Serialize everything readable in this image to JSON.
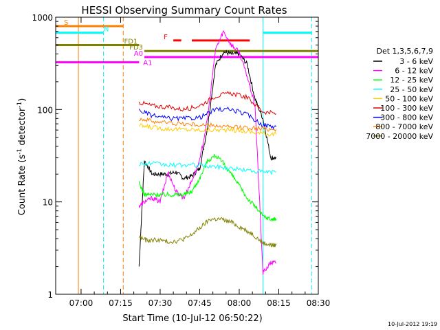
{
  "chart_data": {
    "type": "line",
    "title": "HESSI Observing Summary Count Rates",
    "xlabel": "Start Time (10-Jul-12 06:50:22)",
    "ylabel": "Count Rate (s⁻¹ detector⁻¹)",
    "ylabel_parts": [
      "Count Rate (s",
      "-1",
      " detector",
      "-1",
      ")"
    ],
    "y_scale": "log",
    "ylim": [
      1,
      1000
    ],
    "xlim": [
      "06:50:22",
      "08:30:00"
    ],
    "x_ticks": [
      "07:00",
      "07:15",
      "07:30",
      "07:45",
      "08:00",
      "08:15",
      "08:30"
    ],
    "y_ticks": [
      "1",
      "10",
      "100",
      "1000"
    ],
    "footer": "10-Jul-2012 19:19",
    "legend_title": "Det 1,3,5,6,7,9",
    "legend_placement": "right",
    "series": [
      {
        "name": "3 - 6 keV",
        "color": "#000000",
        "x": [
          "07:22",
          "07:24",
          "07:27",
          "07:30",
          "07:33",
          "07:36",
          "07:39",
          "07:42",
          "07:45",
          "07:48",
          "07:51",
          "07:54",
          "07:57",
          "08:00",
          "08:03",
          "08:06",
          "08:09",
          "08:12",
          "08:14"
        ],
        "y": [
          2,
          28,
          20,
          20,
          20,
          21,
          18,
          19,
          23,
          65,
          300,
          420,
          400,
          400,
          310,
          130,
          80,
          30,
          30
        ]
      },
      {
        "name": "6 - 12 keV",
        "color": "#ff00ff",
        "x": [
          "07:22",
          "07:24",
          "07:27",
          "07:30",
          "07:33",
          "07:36",
          "07:39",
          "07:42",
          "07:45",
          "07:48",
          "07:51",
          "07:54",
          "07:57",
          "08:00",
          "08:03",
          "08:06",
          "08:09",
          "08:12",
          "08:14"
        ],
        "y": [
          9,
          10,
          11,
          10,
          21,
          13,
          11,
          17,
          28,
          80,
          450,
          700,
          500,
          420,
          230,
          110,
          1.7,
          2.2,
          2.2
        ]
      },
      {
        "name": "12 - 25 keV",
        "color": "#00ff00",
        "x": [
          "07:22",
          "07:24",
          "07:27",
          "07:30",
          "07:33",
          "07:36",
          "07:39",
          "07:42",
          "07:45",
          "07:48",
          "07:51",
          "07:54",
          "07:57",
          "08:00",
          "08:03",
          "08:06",
          "08:09",
          "08:12",
          "08:14"
        ],
        "y": [
          16,
          12,
          12,
          12,
          12,
          12,
          12,
          13,
          18,
          28,
          32,
          26,
          20,
          15,
          11,
          9,
          7,
          6.5,
          6.5
        ]
      },
      {
        "name": "25 - 50 keV",
        "color": "#00ffff",
        "x": [
          "07:22",
          "07:27",
          "07:33",
          "07:39",
          "07:45",
          "07:51",
          "07:57",
          "08:03",
          "08:09",
          "08:14"
        ],
        "y": [
          26,
          26,
          25,
          25,
          25,
          24,
          23,
          22,
          21,
          21
        ]
      },
      {
        "name": "50 - 100 keV",
        "color": "#ffcc00",
        "x": [
          "07:22",
          "07:27",
          "07:33",
          "07:39",
          "07:45",
          "07:51",
          "07:57",
          "08:03",
          "08:09",
          "08:14"
        ],
        "y": [
          67,
          64,
          62,
          61,
          60,
          60,
          60,
          58,
          55,
          54
        ]
      },
      {
        "name": "100 - 300 keV",
        "color": "#dd0000",
        "x": [
          "07:22",
          "07:27",
          "07:33",
          "07:39",
          "07:45",
          "07:51",
          "07:57",
          "08:03",
          "08:09",
          "08:14"
        ],
        "y": [
          120,
          110,
          106,
          100,
          110,
          140,
          150,
          135,
          95,
          90
        ]
      },
      {
        "name": "300 - 800 keV",
        "color": "#0000ff",
        "x": [
          "07:22",
          "07:27",
          "07:33",
          "07:39",
          "07:45",
          "07:51",
          "07:57",
          "08:03",
          "08:09",
          "08:14"
        ],
        "y": [
          98,
          86,
          80,
          80,
          82,
          100,
          100,
          88,
          68,
          65
        ]
      },
      {
        "name": "800 - 7000 keV",
        "color": "#ff8000",
        "x": [
          "07:22",
          "07:27",
          "07:33",
          "07:39",
          "07:45",
          "07:51",
          "07:57",
          "08:03",
          "08:09",
          "08:14"
        ],
        "y": [
          80,
          75,
          72,
          70,
          68,
          67,
          64,
          64,
          62,
          61
        ]
      },
      {
        "name": "7000 - 20000 keV",
        "color": "#808000",
        "x": [
          "07:22",
          "07:25",
          "07:29",
          "07:33",
          "07:37",
          "07:41",
          "07:45",
          "07:49",
          "07:53",
          "07:57",
          "08:01",
          "08:05",
          "08:09",
          "08:12",
          "08:14"
        ],
        "y": [
          4.2,
          3.8,
          3.9,
          3.7,
          3.8,
          4.2,
          5.2,
          6.5,
          6.5,
          6.0,
          5.2,
          4.5,
          3.6,
          3.4,
          3.4
        ]
      }
    ],
    "flags": [
      {
        "label": "S",
        "color": "#ff8000",
        "start": "06:50:22",
        "end": "07:16:00",
        "y": 800
      },
      {
        "label": "N",
        "color": "#00ffff",
        "start": "06:50:22",
        "end": "07:08:30",
        "y": 680
      },
      {
        "label": "F",
        "color": "#ff0000",
        "start": "07:35:00",
        "end": "07:38:00",
        "y": 560
      },
      {
        "label": "",
        "color": "#ff0000",
        "start": "07:42:00",
        "end": "08:04:00",
        "y": 560
      },
      {
        "label": "FD1",
        "color": "#808000",
        "start": "06:50:22",
        "end": "07:22:00",
        "y": 500
      },
      {
        "label": "FD3",
        "color": "#808000",
        "start": "07:24:00",
        "end": "08:30:00",
        "y": 430
      },
      {
        "label": "A0",
        "color": "#ff00ff",
        "start": "07:24:00",
        "end": "08:30:00",
        "y": 370
      },
      {
        "label": "A1",
        "color": "#ff00ff",
        "start": "06:50:22",
        "end": "07:22:00",
        "y": 325
      },
      {
        "label": "",
        "color": "#00ffff",
        "start": "08:09:00",
        "end": "08:27:30",
        "y": 680
      }
    ],
    "vlines": [
      {
        "time": "06:59:00",
        "color": "#ff8000",
        "style": "solid"
      },
      {
        "time": "07:08:30",
        "color": "#00ffff",
        "style": "dashed"
      },
      {
        "time": "07:16:00",
        "color": "#ff8000",
        "style": "dashed"
      },
      {
        "time": "08:09:00",
        "color": "#00ffff",
        "style": "solid"
      },
      {
        "time": "08:27:30",
        "color": "#00ffff",
        "style": "dashed"
      }
    ]
  }
}
